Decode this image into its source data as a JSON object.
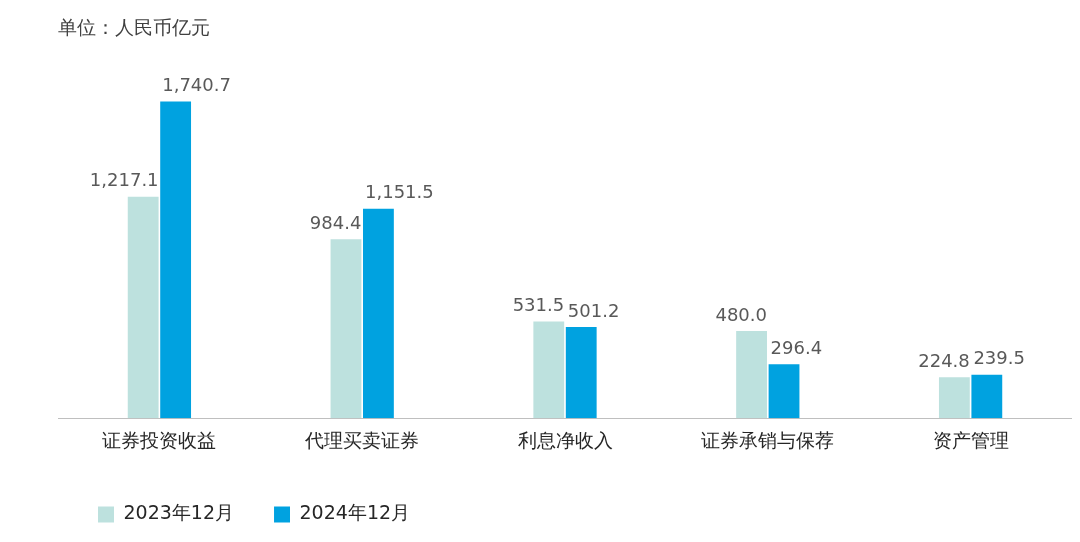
{
  "chart_data": {
    "type": "bar",
    "title": "单位：人民币亿元",
    "categories": [
      "证券投资收益",
      "代理买卖证券",
      "利息净收入",
      "证券承销与保荐",
      "资产管理"
    ],
    "series": [
      {
        "name": "2023年12月",
        "color": "#bde1de",
        "values": [
          1217.1,
          984.4,
          531.5,
          480.0,
          224.8
        ],
        "value_labels": [
          "1,217.1",
          "984.4",
          "531.5",
          "480.0",
          "224.8"
        ]
      },
      {
        "name": "2024年12月",
        "color": "#00a2e0",
        "values": [
          1740.7,
          1151.5,
          501.2,
          296.4,
          239.5
        ],
        "value_labels": [
          "1,740.7",
          "1,151.5",
          "501.2",
          "296.4",
          "239.5"
        ]
      }
    ],
    "legend": "bottom left"
  }
}
